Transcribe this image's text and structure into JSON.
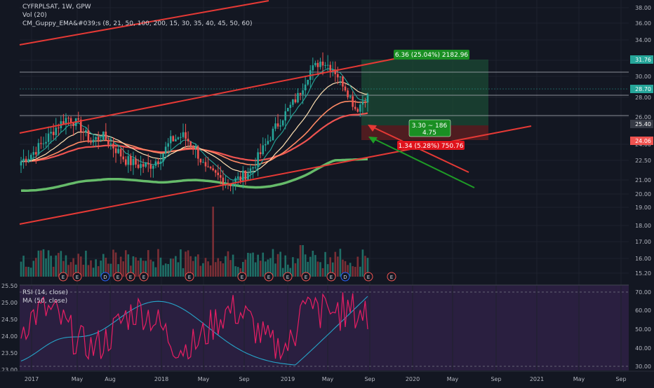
{
  "header": {
    "symbol_line": "CYFRPLSAT, 1W, GPW",
    "volume_line": "Vol (20)",
    "guppy_line": "CM_Guppy_EMA&#039;s (8, 21, 50, 100, 200, 15, 30, 35, 40, 45, 50, 60)"
  },
  "rsi_legend": {
    "rsi": "RSI (14, close)",
    "ma": "MA (50, close)"
  },
  "price_axis": {
    "ticks": [
      "38.00",
      "36.00",
      "34.00",
      "32.00",
      "30.00",
      "28.00",
      "26.00",
      "24.00",
      "22.50",
      "21.00",
      "20.00",
      "19.00",
      "18.00",
      "17.00",
      "16.00",
      "15.20"
    ],
    "tags": [
      {
        "label": "31.76",
        "color": "#26a69a"
      },
      {
        "label": "28.70",
        "color": "#26a69a"
      },
      {
        "label": "25.40",
        "color": "#363a45"
      },
      {
        "label": "24.06",
        "color": "#ef5350"
      }
    ]
  },
  "rsi_axis": {
    "ticks": [
      "70.00",
      "60.00",
      "50.00",
      "40.00",
      "30.00"
    ]
  },
  "left_scale": {
    "ticks": [
      "25.50",
      "25.00",
      "24.50",
      "24.00",
      "23.50",
      "23.00"
    ]
  },
  "time_axis": {
    "ticks": [
      "2017",
      "May",
      "Aug",
      "2018",
      "May",
      "Sep",
      "2019",
      "May",
      "Sep",
      "2020",
      "May",
      "Sep",
      "2021",
      "May",
      "Sep"
    ]
  },
  "position": {
    "profit_label": "6.36 (25.04%) 2182.96",
    "center_label_1": "3.30 ~ 186",
    "center_label_2": "4.75",
    "loss_label": "1.34 (5.28%) 750.76",
    "colors": {
      "profit": "#26a69a",
      "loss": "#ef5350"
    }
  },
  "event_markers": [
    "E",
    "E",
    "D",
    "E",
    "E",
    "E",
    "E",
    "E",
    "E",
    "E",
    "E",
    "E",
    "D",
    "E",
    "E"
  ],
  "chart_data": {
    "type": "candlestick",
    "title": "CYFRPLSAT, 1W, GPW",
    "ylim": [
      15.2,
      38.0
    ],
    "y_scale": "log",
    "x": [
      "2017",
      "May",
      "Aug",
      "2018",
      "May",
      "Sep",
      "2019",
      "May",
      "Sep"
    ],
    "close_path": [
      24.3,
      24.8,
      25.5,
      26.4,
      27.1,
      26.6,
      25.5,
      25.9,
      25.2,
      24.4,
      24.1,
      24.0,
      24.5,
      25.6,
      25.9,
      25.2,
      23.7,
      23.4,
      23.0,
      23.3,
      23.9,
      25.1,
      26.4,
      27.5,
      28.6,
      30.4,
      31.2,
      30.6,
      29.3,
      27.6,
      28.7
    ],
    "last_close": 28.7,
    "rsi": {
      "ylim": [
        30,
        70
      ],
      "levels": [
        70,
        30
      ]
    }
  }
}
